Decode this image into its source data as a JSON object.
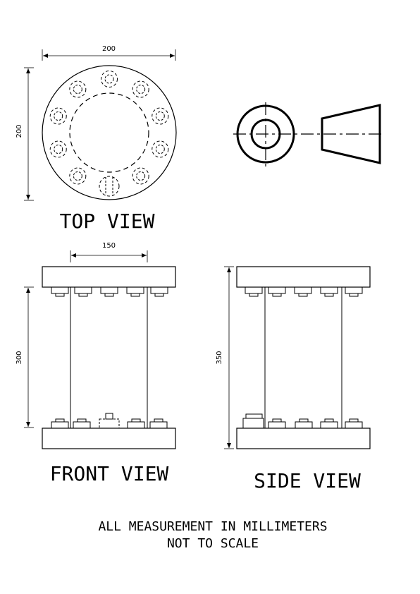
{
  "views": {
    "top": "TOP VIEW",
    "front": "FRONT VIEW",
    "side": "SIDE VIEW"
  },
  "dimensions": {
    "top_width": "200",
    "top_height": "200",
    "front_span": "150",
    "front_height": "300",
    "side_height": "350"
  },
  "notes": {
    "line1": "ALL MEASUREMENT IN MILLIMETERS",
    "line2": "NOT TO SCALE"
  }
}
